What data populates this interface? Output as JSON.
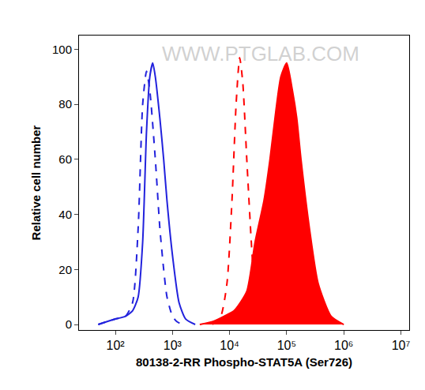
{
  "chart_data": {
    "type": "line",
    "x_label": "80138-2-RR Phospho-STAT5A (Ser726)",
    "y_label": "Relative cell number",
    "annotations": [
      "WWW.PTGLAB.COM"
    ],
    "log": "x",
    "grid": false,
    "xlim": [
      23,
      14000000
    ],
    "xticks": [
      {
        "value": 100,
        "label": "10²"
      },
      {
        "value": 1000,
        "label": "10³"
      },
      {
        "value": 10000,
        "label": "10⁴"
      },
      {
        "value": 100000,
        "label": "10⁵"
      },
      {
        "value": 1000000,
        "label": "10⁶"
      },
      {
        "value": 10000000,
        "label": "10⁷"
      }
    ],
    "ylim": [
      -2,
      105
    ],
    "yticks": [
      0,
      20,
      40,
      60,
      80,
      100
    ],
    "series": [
      {
        "color": "#2222dd",
        "line_style": "solid",
        "type": "line",
        "x": [
          50,
          70,
          100,
          150,
          200,
          250,
          300,
          350,
          400,
          450,
          500,
          600,
          700,
          800,
          1000,
          1300,
          1700,
          2500
        ],
        "values": [
          0,
          1,
          2,
          3,
          5,
          10,
          30,
          70,
          90,
          95,
          90,
          75,
          60,
          45,
          25,
          8,
          2,
          0
        ]
      },
      {
        "color": "#2222dd",
        "line_style": "dashed",
        "type": "line",
        "x": [
          50,
          70,
          100,
          150,
          200,
          250,
          300,
          350,
          400,
          500,
          600,
          700,
          800,
          1000,
          1200,
          1500
        ],
        "values": [
          0,
          1,
          2,
          3,
          8,
          35,
          80,
          92,
          85,
          60,
          35,
          20,
          10,
          3,
          1,
          0
        ]
      },
      {
        "color": "#ff0000",
        "line_style": "dashed",
        "type": "line",
        "x": [
          5000,
          7000,
          9000,
          11000,
          13000,
          15000,
          17000,
          20000,
          24000,
          28000,
          35000
        ],
        "values": [
          0,
          3,
          15,
          45,
          80,
          97,
          88,
          60,
          30,
          10,
          0
        ]
      },
      {
        "color": "#ff0000",
        "line_style": "solid",
        "type": "area",
        "x": [
          3000,
          5000,
          8000,
          12000,
          20000,
          28000,
          40000,
          51000,
          65000,
          79000,
          100000,
          126000,
          150000,
          178000,
          250000,
          355000,
          600000,
          1000000
        ],
        "values": [
          0,
          1,
          3,
          5,
          12,
          30,
          45,
          60,
          78,
          90,
          95,
          85,
          75,
          60,
          35,
          15,
          3,
          0
        ]
      }
    ]
  }
}
